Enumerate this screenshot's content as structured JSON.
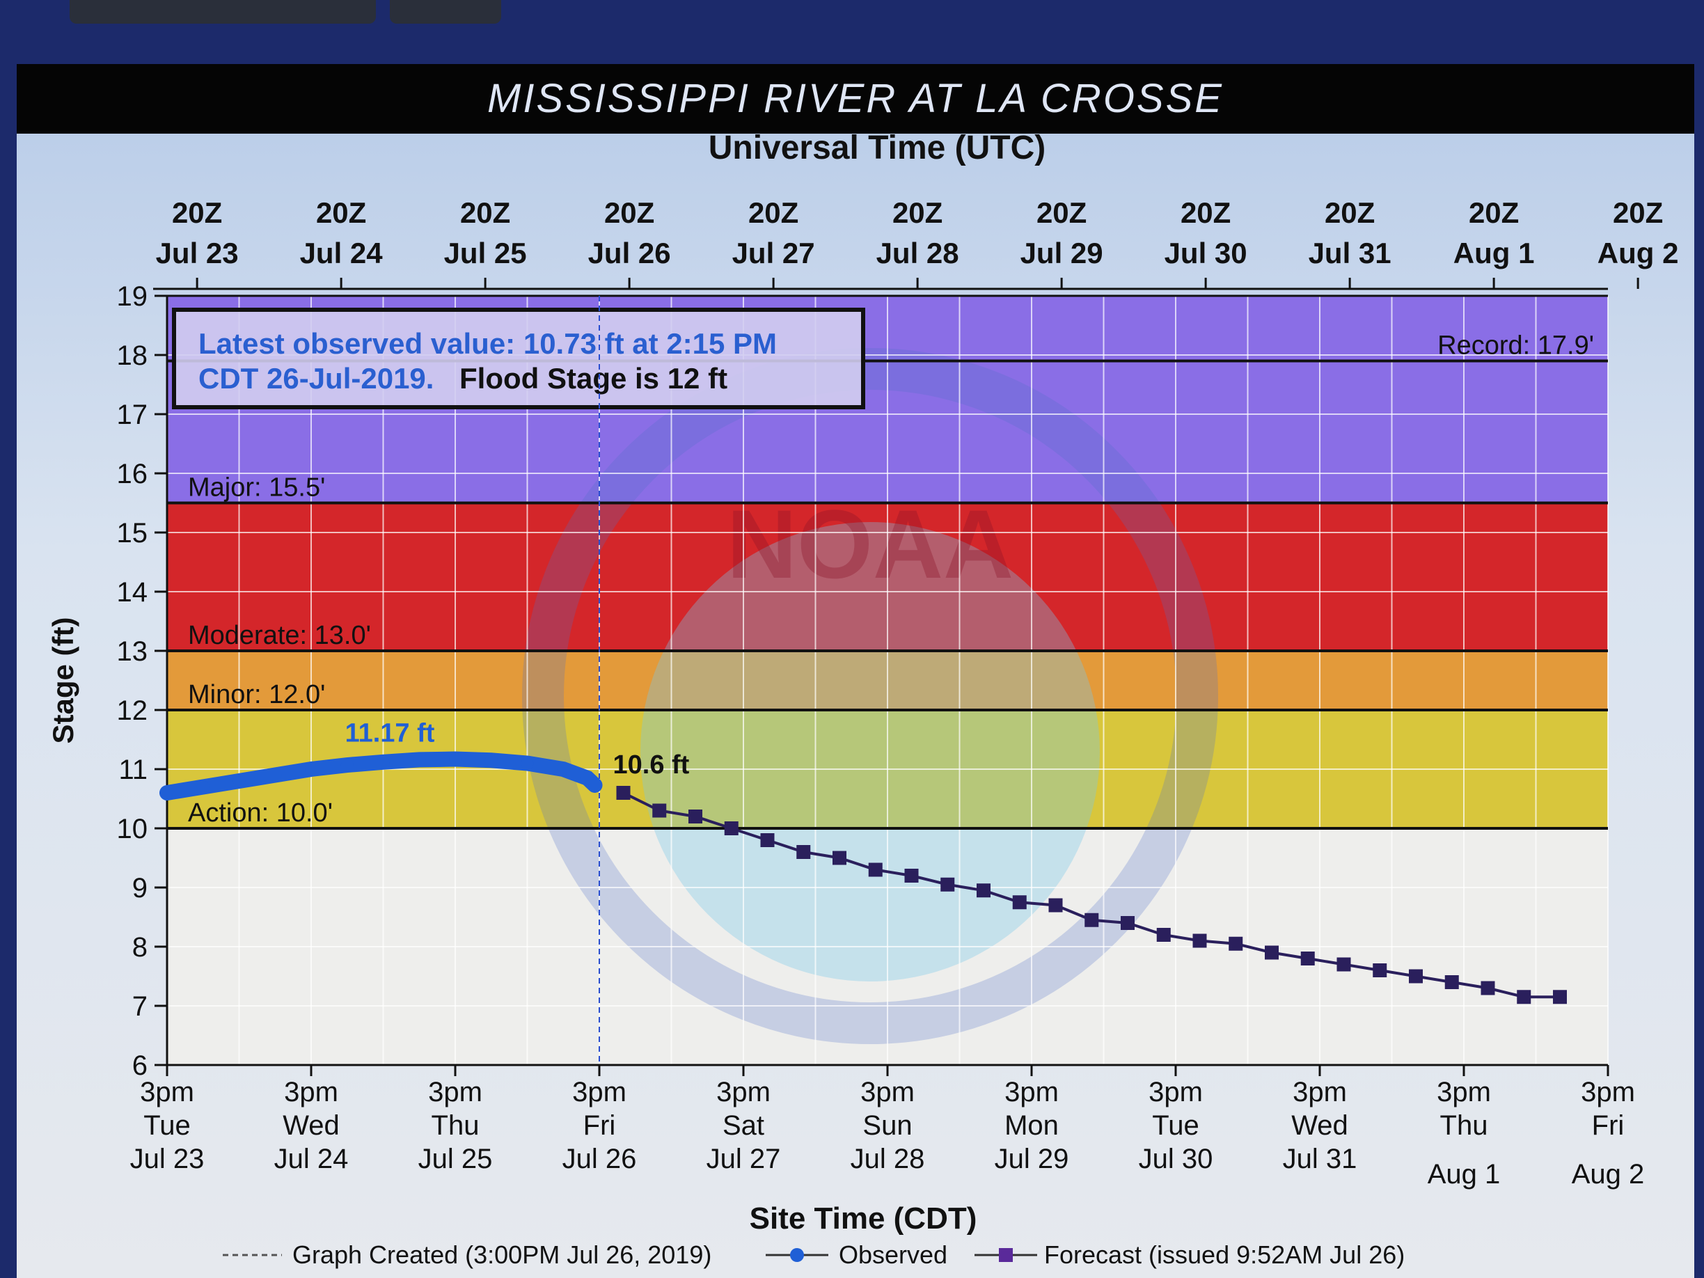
{
  "chart_data": {
    "type": "line",
    "title": "MISSISSIPPI RIVER AT LA CROSSE",
    "top_axis_label": "Universal Time (UTC)",
    "xlabel": "Site Time (CDT)",
    "ylabel": "Stage (ft)",
    "xlim": [
      "2019-07-23T15:00",
      "2019-08-02T15:00"
    ],
    "ylim": [
      6,
      19
    ],
    "y_ticks": [
      6,
      7,
      8,
      9,
      10,
      11,
      12,
      13,
      14,
      15,
      16,
      17,
      18,
      19
    ],
    "grid": true,
    "bottom_tick_labels": [
      {
        "time": "3pm",
        "day": "Tue",
        "date": "Jul 23"
      },
      {
        "time": "3pm",
        "day": "Wed",
        "date": "Jul 24"
      },
      {
        "time": "3pm",
        "day": "Thu",
        "date": "Jul 25"
      },
      {
        "time": "3pm",
        "day": "Fri",
        "date": "Jul 26"
      },
      {
        "time": "3pm",
        "day": "Sat",
        "date": "Jul 27"
      },
      {
        "time": "3pm",
        "day": "Sun",
        "date": "Jul 28"
      },
      {
        "time": "3pm",
        "day": "Mon",
        "date": "Jul 29"
      },
      {
        "time": "3pm",
        "day": "Tue",
        "date": "Jul 30"
      },
      {
        "time": "3pm",
        "day": "Wed",
        "date": "Jul 31"
      },
      {
        "time": "3pm",
        "day": "Thu",
        "date": "Aug 1"
      },
      {
        "time": "3pm",
        "day": "Fri",
        "date": "Aug 2"
      }
    ],
    "top_tick_labels": [
      {
        "time": "20Z",
        "date": "Jul 23"
      },
      {
        "time": "20Z",
        "date": "Jul 24"
      },
      {
        "time": "20Z",
        "date": "Jul 25"
      },
      {
        "time": "20Z",
        "date": "Jul 26"
      },
      {
        "time": "20Z",
        "date": "Jul 27"
      },
      {
        "time": "20Z",
        "date": "Jul 28"
      },
      {
        "time": "20Z",
        "date": "Jul 29"
      },
      {
        "time": "20Z",
        "date": "Jul 30"
      },
      {
        "time": "20Z",
        "date": "Jul 31"
      },
      {
        "time": "20Z",
        "date": "Aug 1"
      },
      {
        "time": "20Z",
        "date": "Aug 2"
      }
    ],
    "bands": [
      {
        "name": "Action",
        "label": "Action: 10.0'",
        "from": 10,
        "to": 12,
        "color": "#d8c63c"
      },
      {
        "name": "Minor",
        "label": "Minor: 12.0'",
        "from": 12,
        "to": 13,
        "color": "#e39a3a"
      },
      {
        "name": "Moderate",
        "label": "Moderate: 13.0'",
        "from": 13,
        "to": 15.5,
        "color": "#d4262a"
      },
      {
        "name": "Major",
        "label": "Major: 15.5'",
        "from": 15.5,
        "to": 19,
        "color": "#8a6ee6"
      }
    ],
    "normal_color": "#eeeeec",
    "record": {
      "label": "Record: 17.9'",
      "value": 17.9
    },
    "info_box": {
      "line1": "Latest observed value: 10.73 ft at 2:15 PM",
      "line2_blue": "CDT 26-Jul-2019.",
      "line2_black": "Flood Stage is 12 ft"
    },
    "graph_created": {
      "label": "Graph Created (3:00PM Jul 26, 2019)",
      "time": "2019-07-26T15:00"
    },
    "series": [
      {
        "name": "Observed",
        "color": "#1f5fd6",
        "peak_label": "11.17 ft",
        "x": [
          "2019-07-23T15:00",
          "2019-07-23T21:00",
          "2019-07-24T03:00",
          "2019-07-24T09:00",
          "2019-07-24T15:00",
          "2019-07-24T21:00",
          "2019-07-25T03:00",
          "2019-07-25T09:00",
          "2019-07-25T15:00",
          "2019-07-25T21:00",
          "2019-07-26T03:00",
          "2019-07-26T09:00",
          "2019-07-26T13:00",
          "2019-07-26T14:15"
        ],
        "y": [
          10.6,
          10.7,
          10.8,
          10.9,
          11.0,
          11.07,
          11.12,
          11.16,
          11.17,
          11.15,
          11.1,
          11.0,
          10.85,
          10.73
        ]
      },
      {
        "name": "Forecast (issued 9:52AM Jul 26)",
        "color": "#2a1f5c",
        "first_label": "10.6 ft",
        "x": [
          "2019-07-26T19:00",
          "2019-07-27T01:00",
          "2019-07-27T07:00",
          "2019-07-27T13:00",
          "2019-07-27T19:00",
          "2019-07-28T01:00",
          "2019-07-28T07:00",
          "2019-07-28T13:00",
          "2019-07-28T19:00",
          "2019-07-29T01:00",
          "2019-07-29T07:00",
          "2019-07-29T13:00",
          "2019-07-29T19:00",
          "2019-07-30T01:00",
          "2019-07-30T07:00",
          "2019-07-30T13:00",
          "2019-07-30T19:00",
          "2019-07-31T01:00",
          "2019-07-31T07:00",
          "2019-07-31T13:00",
          "2019-07-31T19:00",
          "2019-08-01T01:00",
          "2019-08-01T07:00",
          "2019-08-01T13:00",
          "2019-08-01T19:00",
          "2019-08-02T01:00",
          "2019-08-02T07:00"
        ],
        "y": [
          10.6,
          10.3,
          10.2,
          10.0,
          9.8,
          9.6,
          9.5,
          9.3,
          9.2,
          9.05,
          8.95,
          8.75,
          8.7,
          8.45,
          8.4,
          8.2,
          8.1,
          8.05,
          7.9,
          7.8,
          7.7,
          7.6,
          7.5,
          7.4,
          7.3,
          7.15,
          7.15
        ]
      }
    ],
    "legend": {
      "placement": "bottom",
      "graph_created": "Graph Created (3:00PM Jul 26, 2019)",
      "observed": "Observed",
      "forecast": "Forecast (issued 9:52AM Jul 26)"
    },
    "watermark": "NOAA"
  }
}
